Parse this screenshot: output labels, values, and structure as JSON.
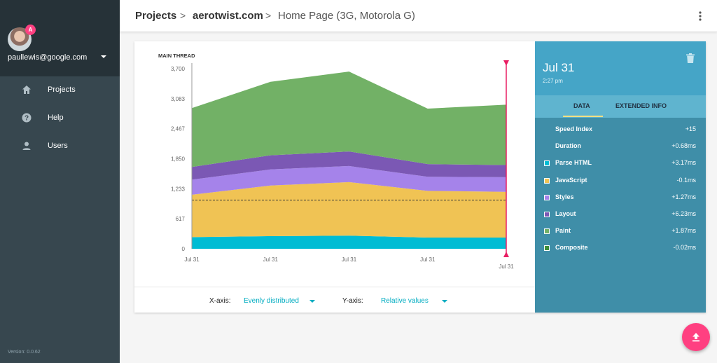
{
  "sidebar": {
    "user": {
      "badge": "A",
      "email": "paullewis@google.com"
    },
    "nav": [
      {
        "label": "Projects",
        "icon": "home-icon"
      },
      {
        "label": "Help",
        "icon": "help-icon"
      },
      {
        "label": "Users",
        "icon": "person-icon"
      }
    ],
    "version": "Version: 0.0.62"
  },
  "header": {
    "crumbs": [
      "Projects",
      "aerotwist.com",
      "Home Page (3G, Motorola G)"
    ],
    "separator": ">",
    "menu_icon": "more-vert-icon"
  },
  "controls": {
    "x_label": "X-axis:",
    "x_value": "Evenly distributed",
    "y_label": "Y-axis:",
    "y_value": "Relative values"
  },
  "panel": {
    "date": "Jul 31",
    "time": "2:27 pm",
    "delete_icon": "delete-icon",
    "tabs": [
      "DATA",
      "EXTENDED INFO"
    ],
    "rows": [
      {
        "name": "Speed Index",
        "value": "+15",
        "color": ""
      },
      {
        "name": "Duration",
        "value": "+0.68ms",
        "color": ""
      },
      {
        "name": "Parse HTML",
        "value": "+3.17ms",
        "color": "#00bcd4"
      },
      {
        "name": "JavaScript",
        "value": "-0.1ms",
        "color": "#f0c354"
      },
      {
        "name": "Styles",
        "value": "+1.27ms",
        "color": "#a583ea"
      },
      {
        "name": "Layout",
        "value": "+6.23ms",
        "color": "#7b58b4"
      },
      {
        "name": "Paint",
        "value": "+1.87ms",
        "color": "#72b166"
      },
      {
        "name": "Composite",
        "value": "-0.02ms",
        "color": "#3f8f3a"
      }
    ]
  },
  "chart_data": {
    "type": "area",
    "title": "MAIN THREAD",
    "ylim": [
      0,
      3700
    ],
    "yticks": [
      "3,700",
      "3,083",
      "2,467",
      "1,850",
      "1,233",
      "617",
      "0"
    ],
    "yticks_values": [
      3700,
      3083,
      2467,
      1850,
      1233,
      617,
      0
    ],
    "categories": [
      "Jul 31",
      "Jul 31",
      "Jul 31",
      "Jul 31",
      "Jul 31"
    ],
    "stacked": true,
    "series": [
      {
        "name": "Parse HTML",
        "color": "#00bcd4",
        "values": [
          240,
          260,
          270,
          230,
          230
        ]
      },
      {
        "name": "JavaScript",
        "color": "#f0c354",
        "values": [
          870,
          1040,
          1100,
          960,
          940
        ]
      },
      {
        "name": "Styles",
        "color": "#a583ea",
        "values": [
          310,
          330,
          330,
          290,
          300
        ]
      },
      {
        "name": "Layout",
        "color": "#7b58b4",
        "values": [
          260,
          290,
          300,
          260,
          250
        ]
      },
      {
        "name": "Paint",
        "color": "#72b166",
        "values": [
          1210,
          1510,
          1640,
          1140,
          1240
        ]
      }
    ],
    "reference_line": 1000,
    "marker_index": 4,
    "grid": false,
    "legend": "none"
  },
  "fab": {
    "icon": "upload-icon"
  }
}
